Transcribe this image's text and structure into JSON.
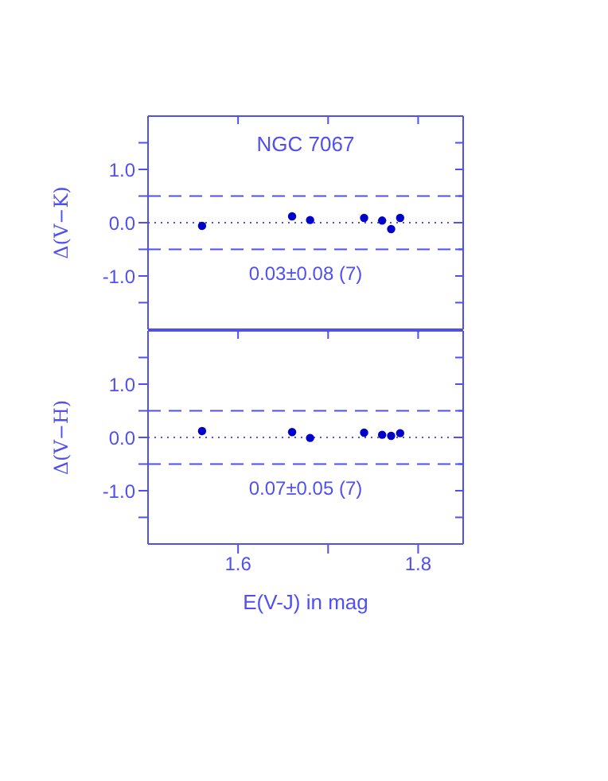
{
  "chart_data": [
    {
      "type": "scatter",
      "title": "NGC 7067",
      "ylabel": "Δ(V−K)",
      "x": [
        1.56,
        1.66,
        1.68,
        1.74,
        1.76,
        1.77,
        1.78
      ],
      "values": [
        -0.06,
        0.12,
        0.05,
        0.09,
        0.04,
        -0.12,
        0.09
      ],
      "color": "#0000cc",
      "marker": "circle",
      "xlim": [
        1.5,
        1.85
      ],
      "xticks": [
        {
          "value": 1.6,
          "label": null
        },
        {
          "value": 1.7,
          "label": null
        },
        {
          "value": 1.8,
          "label": null
        }
      ],
      "ylim": [
        -2,
        2
      ],
      "yticks": [
        {
          "value": -1.5,
          "label": null
        },
        {
          "value": -1,
          "label": "-1.0"
        },
        {
          "value": -0.5,
          "label": null
        },
        {
          "value": 0,
          "label": "0.0"
        },
        {
          "value": 0.5,
          "label": null
        },
        {
          "value": 1,
          "label": "1.0"
        },
        {
          "value": 1.5,
          "label": null
        }
      ],
      "tick_labels": "y",
      "annotations": [
        "0.03±0.08 (7)"
      ],
      "ref_lines": [
        {
          "axis": "y",
          "value": 0.5,
          "line_style": "dashed",
          "color": "#5050f0"
        },
        {
          "axis": "y",
          "value": -0.5,
          "line_style": "dashed",
          "color": "#5050f0"
        },
        {
          "axis": "y",
          "value": 0,
          "line_style": "dotted",
          "color": "#5050f0"
        }
      ]
    },
    {
      "type": "scatter",
      "xlabel": "E(V-J) in mag",
      "ylabel": "Δ(V−H)",
      "x": [
        1.56,
        1.66,
        1.68,
        1.74,
        1.76,
        1.77,
        1.78
      ],
      "values": [
        0.12,
        0.1,
        -0.01,
        0.09,
        0.05,
        0.03,
        0.08
      ],
      "color": "#0000cc",
      "marker": "circle",
      "xlim": [
        1.5,
        1.85
      ],
      "xticks": [
        1.6,
        {
          "value": 1.7,
          "label": null
        },
        1.8
      ],
      "ylim": [
        -2,
        2
      ],
      "yticks": [
        {
          "value": -1.5,
          "label": null
        },
        {
          "value": -1,
          "label": "-1.0"
        },
        {
          "value": -0.5,
          "label": null
        },
        {
          "value": 0,
          "label": "0.0"
        },
        {
          "value": 0.5,
          "label": null
        },
        {
          "value": 1,
          "label": "1.0"
        },
        {
          "value": 1.5,
          "label": null
        }
      ],
      "annotations": [
        "0.07±0.05 (7)"
      ],
      "ref_lines": [
        {
          "axis": "y",
          "value": 0.5,
          "line_style": "dashed",
          "color": "#5050f0"
        },
        {
          "axis": "y",
          "value": -0.5,
          "line_style": "dashed",
          "color": "#5050f0"
        },
        {
          "axis": "y",
          "value": 0,
          "line_style": "dotted",
          "color": "#5050f0"
        }
      ]
    }
  ]
}
